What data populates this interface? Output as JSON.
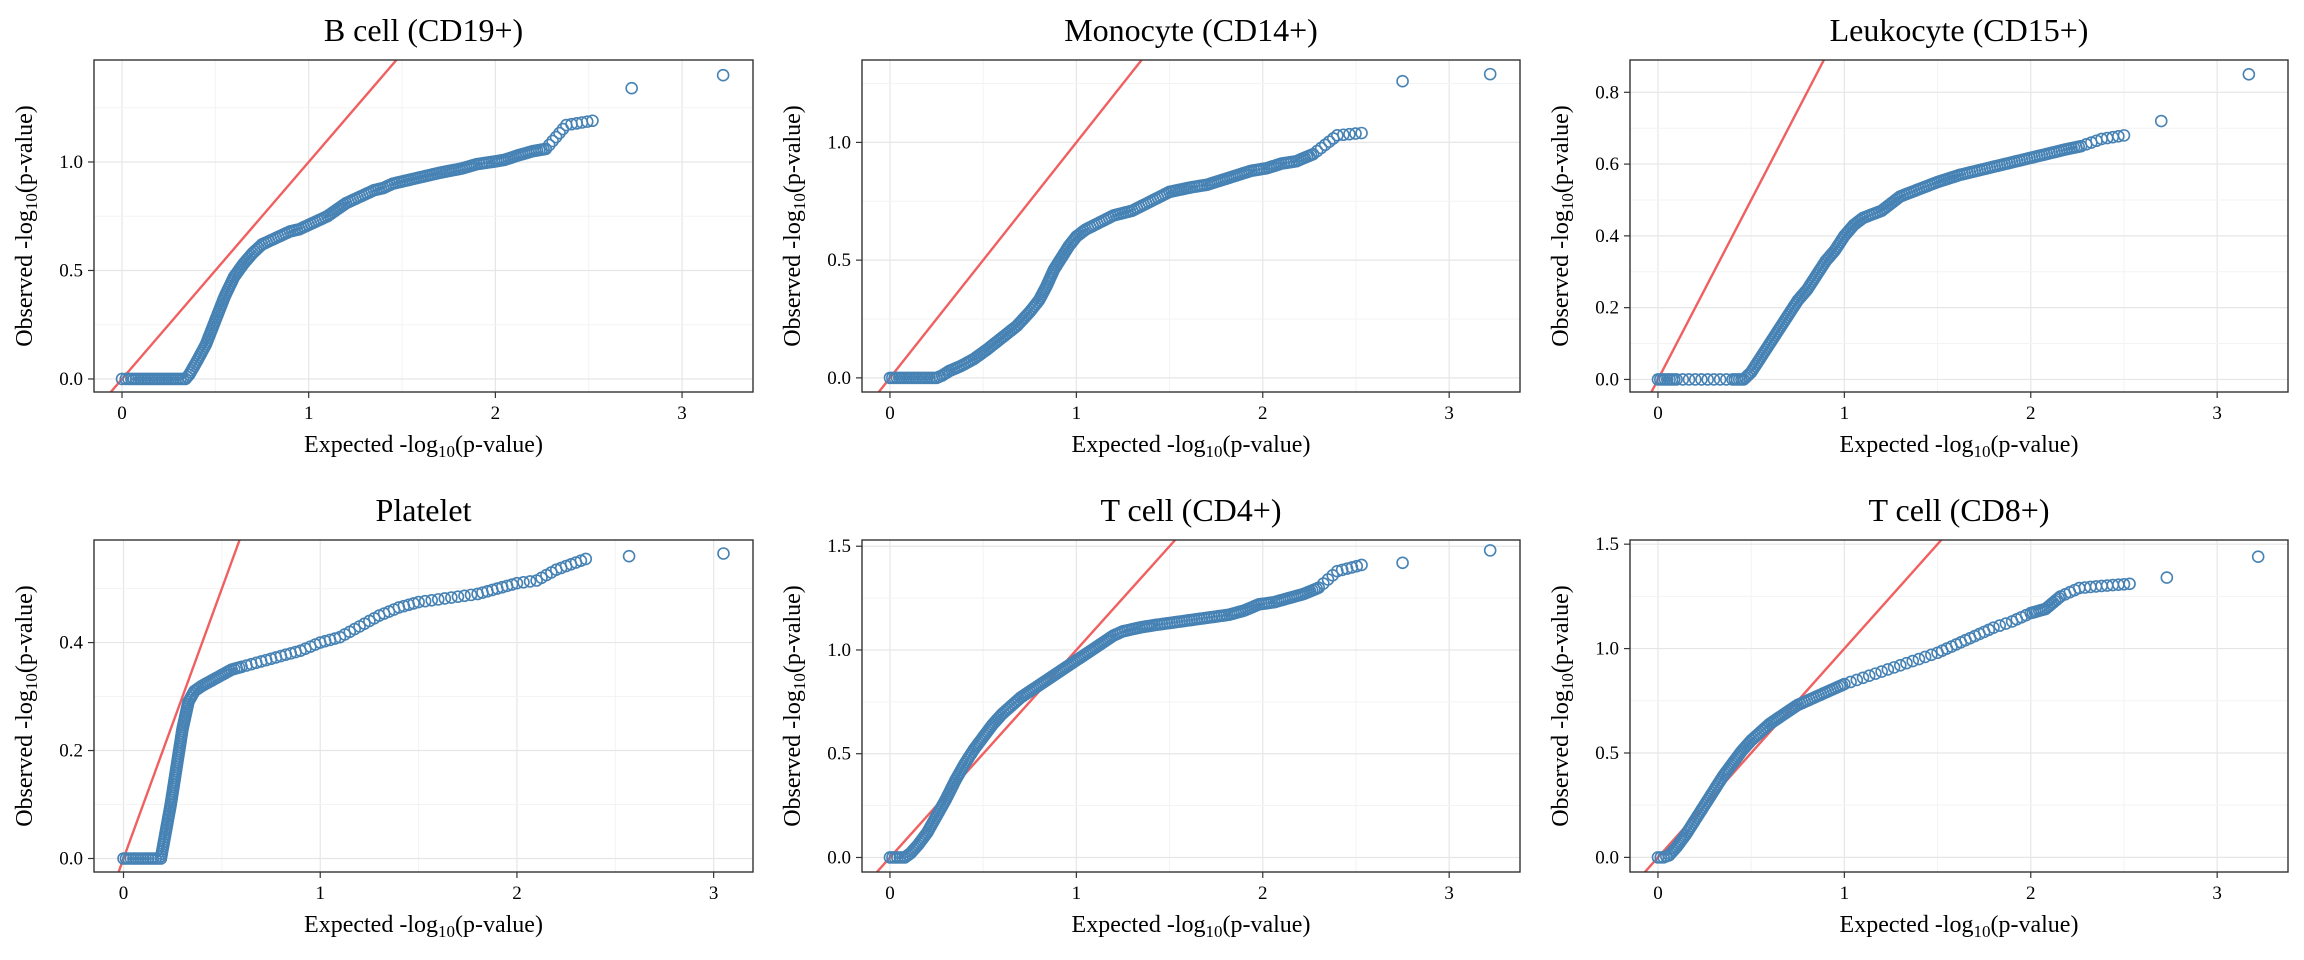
{
  "colors": {
    "points": "#4682b4",
    "reference_line": "#f06060",
    "grid": "#e6e6e6"
  },
  "chart_data": [
    {
      "type": "scatter",
      "title": "B cell (CD19+)",
      "xlabel": "Expected -log10(p-value)",
      "ylabel": "Observed -log10(p-value)",
      "xlim": [
        -0.15,
        3.38
      ],
      "ylim": [
        -0.06,
        1.47
      ],
      "xticks": [
        0,
        1,
        2,
        3
      ],
      "xtick_labels": [
        "0",
        "1",
        "2",
        "3"
      ],
      "yticks": [
        0,
        0.5,
        1
      ],
      "ytick_labels": [
        "0.0",
        "0.5",
        "1.0"
      ],
      "reference_line": "y = x",
      "points": [
        [
          0,
          0
        ],
        [
          0.02,
          0
        ],
        [
          0.05,
          0
        ],
        [
          0.1,
          0
        ],
        [
          0.15,
          0
        ],
        [
          0.2,
          0
        ],
        [
          0.25,
          0
        ],
        [
          0.3,
          0
        ],
        [
          0.34,
          0
        ],
        [
          0.36,
          0.02
        ],
        [
          0.4,
          0.08
        ],
        [
          0.45,
          0.16
        ],
        [
          0.5,
          0.27
        ],
        [
          0.55,
          0.38
        ],
        [
          0.6,
          0.47
        ],
        [
          0.65,
          0.53
        ],
        [
          0.7,
          0.58
        ],
        [
          0.75,
          0.62
        ],
        [
          0.8,
          0.64
        ],
        [
          0.85,
          0.66
        ],
        [
          0.9,
          0.68
        ],
        [
          0.95,
          0.69
        ],
        [
          1.0,
          0.71
        ],
        [
          1.05,
          0.73
        ],
        [
          1.1,
          0.75
        ],
        [
          1.15,
          0.78
        ],
        [
          1.2,
          0.81
        ],
        [
          1.25,
          0.83
        ],
        [
          1.3,
          0.85
        ],
        [
          1.35,
          0.87
        ],
        [
          1.4,
          0.88
        ],
        [
          1.45,
          0.9
        ],
        [
          1.5,
          0.91
        ],
        [
          1.55,
          0.92
        ],
        [
          1.6,
          0.93
        ],
        [
          1.65,
          0.94
        ],
        [
          1.7,
          0.95
        ],
        [
          1.76,
          0.96
        ],
        [
          1.82,
          0.97
        ],
        [
          1.9,
          0.99
        ],
        [
          1.98,
          1.0
        ],
        [
          2.05,
          1.01
        ],
        [
          2.12,
          1.03
        ],
        [
          2.2,
          1.05
        ],
        [
          2.27,
          1.06
        ],
        [
          2.38,
          1.17
        ],
        [
          2.52,
          1.19
        ],
        [
          2.73,
          1.34
        ],
        [
          3.22,
          1.4
        ]
      ]
    },
    {
      "type": "scatter",
      "title": "Monocyte (CD14+)",
      "xlabel": "Expected -log10(p-value)",
      "ylabel": "Observed -log10(p-value)",
      "xlim": [
        -0.15,
        3.38
      ],
      "ylim": [
        -0.06,
        1.35
      ],
      "xticks": [
        0,
        1,
        2,
        3
      ],
      "xtick_labels": [
        "0",
        "1",
        "2",
        "3"
      ],
      "yticks": [
        0,
        0.5,
        1
      ],
      "ytick_labels": [
        "0.0",
        "0.5",
        "1.0"
      ],
      "reference_line": "y = x",
      "points": [
        [
          0,
          0
        ],
        [
          0.05,
          0
        ],
        [
          0.1,
          0
        ],
        [
          0.15,
          0
        ],
        [
          0.2,
          0
        ],
        [
          0.25,
          0
        ],
        [
          0.28,
          0.01
        ],
        [
          0.32,
          0.03
        ],
        [
          0.38,
          0.05
        ],
        [
          0.45,
          0.08
        ],
        [
          0.52,
          0.12
        ],
        [
          0.6,
          0.17
        ],
        [
          0.68,
          0.22
        ],
        [
          0.75,
          0.28
        ],
        [
          0.8,
          0.33
        ],
        [
          0.84,
          0.39
        ],
        [
          0.88,
          0.46
        ],
        [
          0.92,
          0.51
        ],
        [
          0.96,
          0.56
        ],
        [
          1.0,
          0.6
        ],
        [
          1.05,
          0.63
        ],
        [
          1.1,
          0.65
        ],
        [
          1.15,
          0.67
        ],
        [
          1.2,
          0.69
        ],
        [
          1.25,
          0.7
        ],
        [
          1.3,
          0.71
        ],
        [
          1.35,
          0.73
        ],
        [
          1.4,
          0.75
        ],
        [
          1.45,
          0.77
        ],
        [
          1.5,
          0.79
        ],
        [
          1.56,
          0.8
        ],
        [
          1.62,
          0.81
        ],
        [
          1.7,
          0.82
        ],
        [
          1.78,
          0.84
        ],
        [
          1.86,
          0.86
        ],
        [
          1.94,
          0.88
        ],
        [
          2.02,
          0.89
        ],
        [
          2.1,
          0.91
        ],
        [
          2.18,
          0.92
        ],
        [
          2.27,
          0.95
        ],
        [
          2.4,
          1.03
        ],
        [
          2.53,
          1.04
        ],
        [
          2.75,
          1.26
        ],
        [
          3.22,
          1.29
        ]
      ]
    },
    {
      "type": "scatter",
      "title": "Leukocyte (CD15+)",
      "xlabel": "Expected -log10(p-value)",
      "ylabel": "Observed -log10(p-value)",
      "xlim": [
        -0.15,
        3.38
      ],
      "ylim": [
        -0.035,
        0.89
      ],
      "xticks": [
        0,
        1,
        2,
        3
      ],
      "xtick_labels": [
        "0",
        "1",
        "2",
        "3"
      ],
      "yticks": [
        0,
        0.2,
        0.4,
        0.6,
        0.8
      ],
      "ytick_labels": [
        "0.0",
        "0.2",
        "0.4",
        "0.6",
        "0.8"
      ],
      "reference_line": "y = x",
      "points": [
        [
          0,
          0
        ],
        [
          0.05,
          0
        ],
        [
          0.1,
          0
        ],
        [
          0.2,
          0
        ],
        [
          0.3,
          0
        ],
        [
          0.4,
          0
        ],
        [
          0.46,
          0
        ],
        [
          0.5,
          0.02
        ],
        [
          0.55,
          0.06
        ],
        [
          0.6,
          0.1
        ],
        [
          0.65,
          0.14
        ],
        [
          0.7,
          0.18
        ],
        [
          0.75,
          0.22
        ],
        [
          0.8,
          0.25
        ],
        [
          0.85,
          0.29
        ],
        [
          0.9,
          0.33
        ],
        [
          0.95,
          0.36
        ],
        [
          1.0,
          0.4
        ],
        [
          1.05,
          0.43
        ],
        [
          1.1,
          0.45
        ],
        [
          1.15,
          0.46
        ],
        [
          1.2,
          0.47
        ],
        [
          1.25,
          0.49
        ],
        [
          1.3,
          0.51
        ],
        [
          1.35,
          0.52
        ],
        [
          1.4,
          0.53
        ],
        [
          1.45,
          0.54
        ],
        [
          1.5,
          0.55
        ],
        [
          1.56,
          0.56
        ],
        [
          1.62,
          0.57
        ],
        [
          1.7,
          0.58
        ],
        [
          1.78,
          0.59
        ],
        [
          1.86,
          0.6
        ],
        [
          1.94,
          0.61
        ],
        [
          2.02,
          0.62
        ],
        [
          2.1,
          0.63
        ],
        [
          2.18,
          0.64
        ],
        [
          2.27,
          0.65
        ],
        [
          2.38,
          0.67
        ],
        [
          2.5,
          0.68
        ],
        [
          2.7,
          0.72
        ],
        [
          3.17,
          0.85
        ]
      ]
    },
    {
      "type": "scatter",
      "title": "Platelet",
      "xlabel": "Expected -log10(p-value)",
      "ylabel": "Observed -log10(p-value)",
      "xlim": [
        -0.15,
        3.2
      ],
      "ylim": [
        -0.025,
        0.59
      ],
      "xticks": [
        0,
        1,
        2,
        3
      ],
      "xtick_labels": [
        "0",
        "1",
        "2",
        "3"
      ],
      "yticks": [
        0,
        0.2,
        0.4
      ],
      "ytick_labels": [
        "0.0",
        "0.2",
        "0.4"
      ],
      "reference_line": "y = x",
      "points": [
        [
          0,
          0
        ],
        [
          0.05,
          0
        ],
        [
          0.1,
          0
        ],
        [
          0.15,
          0
        ],
        [
          0.19,
          0
        ],
        [
          0.21,
          0.04
        ],
        [
          0.24,
          0.1
        ],
        [
          0.27,
          0.17
        ],
        [
          0.3,
          0.24
        ],
        [
          0.33,
          0.29
        ],
        [
          0.36,
          0.31
        ],
        [
          0.4,
          0.32
        ],
        [
          0.45,
          0.33
        ],
        [
          0.5,
          0.34
        ],
        [
          0.55,
          0.35
        ],
        [
          0.6,
          0.355
        ],
        [
          0.7,
          0.365
        ],
        [
          0.8,
          0.375
        ],
        [
          0.9,
          0.385
        ],
        [
          1.0,
          0.4
        ],
        [
          1.1,
          0.41
        ],
        [
          1.2,
          0.43
        ],
        [
          1.3,
          0.45
        ],
        [
          1.4,
          0.465
        ],
        [
          1.5,
          0.475
        ],
        [
          1.6,
          0.48
        ],
        [
          1.7,
          0.485
        ],
        [
          1.8,
          0.49
        ],
        [
          1.9,
          0.5
        ],
        [
          2.0,
          0.51
        ],
        [
          2.1,
          0.515
        ],
        [
          2.2,
          0.535
        ],
        [
          2.35,
          0.555
        ],
        [
          2.57,
          0.56
        ],
        [
          3.05,
          0.565
        ]
      ]
    },
    {
      "type": "scatter",
      "title": "T cell (CD4+)",
      "xlabel": "Expected -log10(p-value)",
      "ylabel": "Observed -log10(p-value)",
      "xlim": [
        -0.15,
        3.38
      ],
      "ylim": [
        -0.07,
        1.53
      ],
      "xticks": [
        0,
        1,
        2,
        3
      ],
      "xtick_labels": [
        "0",
        "1",
        "2",
        "3"
      ],
      "yticks": [
        0,
        0.5,
        1,
        1.5
      ],
      "ytick_labels": [
        "0.0",
        "0.5",
        "1.0",
        "1.5"
      ],
      "reference_line": "y = x",
      "points": [
        [
          0,
          0
        ],
        [
          0.04,
          0
        ],
        [
          0.08,
          0
        ],
        [
          0.11,
          0.02
        ],
        [
          0.15,
          0.06
        ],
        [
          0.2,
          0.12
        ],
        [
          0.25,
          0.2
        ],
        [
          0.3,
          0.28
        ],
        [
          0.35,
          0.37
        ],
        [
          0.4,
          0.45
        ],
        [
          0.45,
          0.52
        ],
        [
          0.5,
          0.58
        ],
        [
          0.55,
          0.64
        ],
        [
          0.6,
          0.69
        ],
        [
          0.65,
          0.73
        ],
        [
          0.7,
          0.77
        ],
        [
          0.75,
          0.8
        ],
        [
          0.8,
          0.83
        ],
        [
          0.85,
          0.86
        ],
        [
          0.9,
          0.89
        ],
        [
          0.95,
          0.92
        ],
        [
          1.0,
          0.95
        ],
        [
          1.05,
          0.98
        ],
        [
          1.1,
          1.01
        ],
        [
          1.15,
          1.04
        ],
        [
          1.2,
          1.07
        ],
        [
          1.25,
          1.09
        ],
        [
          1.3,
          1.1
        ],
        [
          1.35,
          1.11
        ],
        [
          1.42,
          1.12
        ],
        [
          1.5,
          1.13
        ],
        [
          1.58,
          1.14
        ],
        [
          1.66,
          1.15
        ],
        [
          1.74,
          1.16
        ],
        [
          1.82,
          1.17
        ],
        [
          1.9,
          1.19
        ],
        [
          1.98,
          1.22
        ],
        [
          2.06,
          1.23
        ],
        [
          2.14,
          1.25
        ],
        [
          2.22,
          1.27
        ],
        [
          2.3,
          1.3
        ],
        [
          2.4,
          1.38
        ],
        [
          2.53,
          1.41
        ],
        [
          2.75,
          1.42
        ],
        [
          3.22,
          1.48
        ]
      ]
    },
    {
      "type": "scatter",
      "title": "T cell (CD8+)",
      "xlabel": "Expected -log10(p-value)",
      "ylabel": "Observed -log10(p-value)",
      "xlim": [
        -0.15,
        3.38
      ],
      "ylim": [
        -0.07,
        1.52
      ],
      "xticks": [
        0,
        1,
        2,
        3
      ],
      "xtick_labels": [
        "0",
        "1",
        "2",
        "3"
      ],
      "yticks": [
        0,
        0.5,
        1,
        1.5
      ],
      "ytick_labels": [
        "0.0",
        "0.5",
        "1.0",
        "1.5"
      ],
      "reference_line": "y = x",
      "points": [
        [
          0,
          0
        ],
        [
          0.03,
          0
        ],
        [
          0.06,
          0.01
        ],
        [
          0.1,
          0.05
        ],
        [
          0.15,
          0.11
        ],
        [
          0.2,
          0.18
        ],
        [
          0.25,
          0.25
        ],
        [
          0.3,
          0.32
        ],
        [
          0.35,
          0.39
        ],
        [
          0.4,
          0.45
        ],
        [
          0.45,
          0.51
        ],
        [
          0.5,
          0.56
        ],
        [
          0.55,
          0.6
        ],
        [
          0.6,
          0.64
        ],
        [
          0.65,
          0.67
        ],
        [
          0.7,
          0.7
        ],
        [
          0.75,
          0.73
        ],
        [
          0.8,
          0.75
        ],
        [
          0.85,
          0.77
        ],
        [
          0.9,
          0.79
        ],
        [
          0.95,
          0.81
        ],
        [
          1.0,
          0.83
        ],
        [
          1.1,
          0.86
        ],
        [
          1.2,
          0.89
        ],
        [
          1.3,
          0.92
        ],
        [
          1.4,
          0.95
        ],
        [
          1.5,
          0.98
        ],
        [
          1.6,
          1.02
        ],
        [
          1.7,
          1.06
        ],
        [
          1.8,
          1.1
        ],
        [
          1.9,
          1.13
        ],
        [
          2.0,
          1.17
        ],
        [
          2.08,
          1.19
        ],
        [
          2.16,
          1.25
        ],
        [
          2.26,
          1.29
        ],
        [
          2.38,
          1.3
        ],
        [
          2.53,
          1.31
        ],
        [
          2.73,
          1.34
        ],
        [
          3.22,
          1.44
        ]
      ]
    }
  ]
}
